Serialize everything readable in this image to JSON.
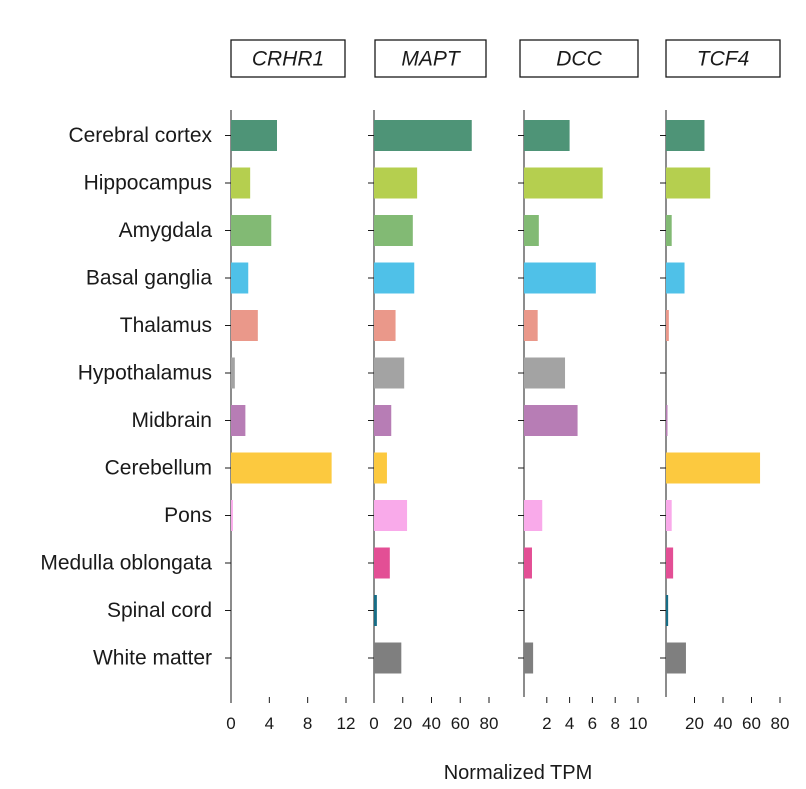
{
  "chart_data": {
    "type": "bar",
    "orientation": "horizontal",
    "xlabel": "Normalized TPM",
    "ylabel": "",
    "title": "",
    "grid": false,
    "legend": "none",
    "categories": [
      "Cerebral cortex",
      "Hippocampus",
      "Amygdala",
      "Basal ganglia",
      "Thalamus",
      "Hypothalamus",
      "Midbrain",
      "Cerebellum",
      "Pons",
      "Medulla oblongata",
      "Spinal cord",
      "White matter"
    ],
    "colors": [
      "#4e9477",
      "#b5cf4f",
      "#82ba74",
      "#4fc1e8",
      "#ea988a",
      "#a3a3a3",
      "#b77db5",
      "#fcc93f",
      "#f9aaea",
      "#e34f95",
      "#176d86",
      "#7f7f7f"
    ],
    "series": [
      {
        "name": "CRHR1",
        "xlim": [
          0,
          12
        ],
        "ticks": [
          "0",
          "4",
          "8",
          "12"
        ],
        "tick_values": [
          0,
          4,
          8,
          12
        ],
        "values": [
          4.8,
          2.0,
          4.2,
          1.8,
          2.8,
          0.4,
          1.5,
          10.5,
          0.2,
          0,
          0,
          0
        ]
      },
      {
        "name": "MAPT",
        "xlim": [
          0,
          80
        ],
        "ticks": [
          "0",
          "20",
          "40",
          "60",
          "80"
        ],
        "tick_values": [
          0,
          20,
          40,
          60,
          80
        ],
        "values": [
          68,
          30,
          27,
          28,
          15,
          21,
          12,
          9,
          23,
          11,
          2,
          19
        ]
      },
      {
        "name": "DCC",
        "xlim": [
          0,
          10
        ],
        "ticks": [
          "2",
          "4",
          "6",
          "8",
          "10"
        ],
        "tick_values": [
          2,
          4,
          6,
          8,
          10
        ],
        "values": [
          4.0,
          6.9,
          1.3,
          6.3,
          1.2,
          3.6,
          4.7,
          0,
          1.6,
          0.7,
          0,
          0.8
        ]
      },
      {
        "name": "TCF4",
        "xlim": [
          0,
          80
        ],
        "ticks": [
          "20",
          "40",
          "60",
          "80"
        ],
        "tick_values": [
          20,
          40,
          60,
          80
        ],
        "values": [
          27,
          31,
          4,
          13,
          2,
          0,
          1,
          66,
          4,
          5,
          1.5,
          14
        ]
      }
    ]
  }
}
